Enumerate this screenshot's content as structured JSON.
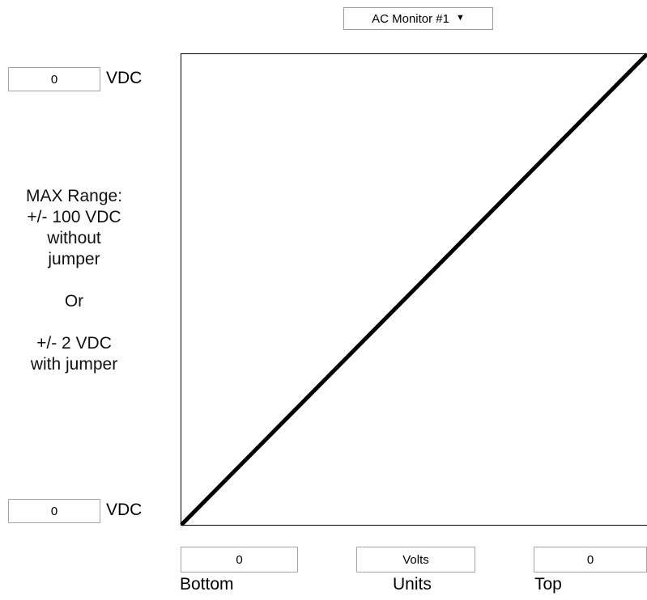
{
  "monitor_select": {
    "selected": "AC Monitor #1",
    "arrow_icon": "triangle-down"
  },
  "top_vdc": {
    "value": "0",
    "unit": "VDC"
  },
  "bottom_vdc": {
    "value": "0",
    "unit": "VDC"
  },
  "range_note": {
    "line1": "MAX Range:",
    "line2": "+/- 100 VDC",
    "line3": "without",
    "line4": "jumper",
    "line5": "Or",
    "line6": "+/- 2 VDC",
    "line7": "with jumper"
  },
  "scale_fields": {
    "bottom": {
      "value": "0",
      "label": "Bottom"
    },
    "units": {
      "value": "Volts",
      "label": "Units"
    },
    "top": {
      "value": "0",
      "label": "Top"
    }
  },
  "chart_data": {
    "type": "line",
    "title": "",
    "xlabel": "",
    "ylabel": "",
    "series": [
      {
        "x": [
          0,
          1
        ],
        "values": [
          0,
          1
        ]
      }
    ],
    "grid": false,
    "colors": {
      "line": "#000000",
      "frame": "#000000"
    }
  }
}
